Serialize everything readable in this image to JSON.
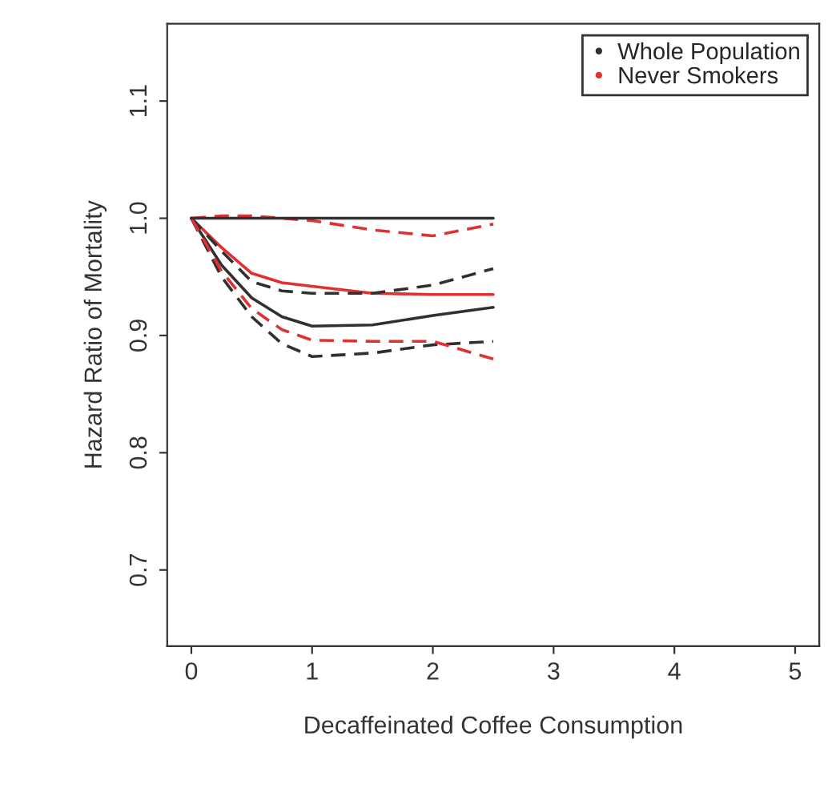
{
  "chart_data": {
    "type": "line",
    "xlabel": "Decaffeinated Coffee Consumption",
    "ylabel": "Hazard Ratio of Mortality",
    "x": [
      0,
      0.25,
      0.5,
      0.75,
      1,
      1.5,
      2,
      2.5
    ],
    "xlim": [
      -0.2,
      5.2
    ],
    "xticks": [
      0,
      1,
      2,
      3,
      4,
      5
    ],
    "ylim": [
      0.635,
      1.166
    ],
    "yticks": [
      0.7,
      0.8,
      0.9,
      {
        "value": 1,
        "label": "1.0"
      },
      1.1
    ],
    "series": [
      {
        "name": "Whole Population",
        "color": "#303030",
        "line_style": "solid",
        "values": [
          1.0,
          0.96,
          0.932,
          0.916,
          0.908,
          0.909,
          0.917,
          0.924
        ]
      },
      {
        "name": "Never Smokers",
        "color": "#e03030",
        "line_style": "solid",
        "values": [
          1.0,
          0.975,
          0.953,
          0.945,
          0.942,
          0.936,
          0.935,
          0.935
        ]
      },
      {
        "color": "#303030",
        "line_style": "dashed",
        "values": [
          1.0,
          0.972,
          0.946,
          0.938,
          0.936,
          0.936,
          0.943,
          0.957
        ]
      },
      {
        "color": "#303030",
        "line_style": "dashed",
        "values": [
          1.0,
          0.95,
          0.916,
          0.893,
          0.882,
          0.885,
          0.892,
          0.895
        ]
      },
      {
        "color": "#e03030",
        "line_style": "dashed",
        "values": [
          1.0,
          1.002,
          1.002,
          1.0,
          0.998,
          0.99,
          0.985,
          0.995
        ]
      },
      {
        "color": "#e03030",
        "line_style": "dashed",
        "values": [
          1.0,
          0.955,
          0.923,
          0.905,
          0.896,
          0.895,
          0.895,
          0.88
        ]
      },
      {
        "color": "#303030",
        "line_style": "solid",
        "x": [
          0,
          2.5
        ],
        "values": [
          1.0,
          1.0
        ]
      }
    ],
    "legend": "top right",
    "grid": false
  }
}
